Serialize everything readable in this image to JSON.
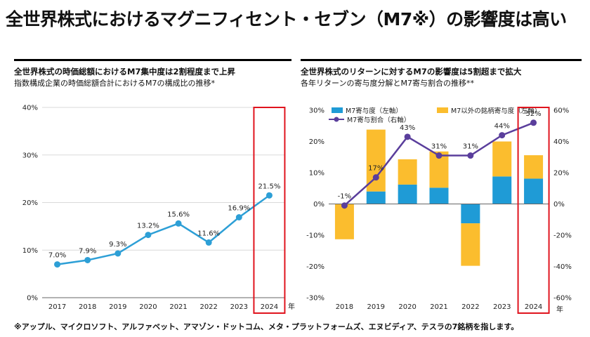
{
  "main_title": "全世界株式におけるマグニフィセント・セブン（M7※）の影響度は高い",
  "left_panel": {
    "title": "全世界株式の時価総額におけるM7集中度は2割程度まで上昇",
    "subtitle": "指数構成企業の時価総額合計におけるM7の構成比の推移*"
  },
  "right_panel": {
    "title": "全世界株式のリターンに対するM7の影響度は5割超まで拡大",
    "subtitle": "各年リターンの寄与度分解とM7寄与割合の推移**"
  },
  "footnote": "※アップル、マイクロソフト、アルファベット、アマゾン・ドットコム、メタ・プラットフォームズ、エヌビディア、テスラの7銘柄を指します。",
  "colors": {
    "line_left": "#2d9fd6",
    "m7_bar": "#1f9bd6",
    "other_bar": "#fbbd2e",
    "ratio_line": "#5a3e9c",
    "highlight": "#e0141e",
    "grid": "#d9d9d9"
  },
  "chart_data": [
    {
      "type": "line",
      "title": "全世界株式の時価総額におけるM7集中度は2割程度まで上昇",
      "categories": [
        "2017",
        "2018",
        "2019",
        "2020",
        "2021",
        "2022",
        "2023",
        "2024"
      ],
      "values": [
        7.0,
        7.9,
        9.3,
        13.2,
        15.6,
        11.6,
        16.9,
        21.5
      ],
      "data_labels": [
        "7.0%",
        "7.9%",
        "9.3%",
        "13.2%",
        "15.6%",
        "11.6%",
        "16.9%",
        "21.5%"
      ],
      "y_ticks": [
        "0%",
        "10%",
        "20%",
        "30%",
        "40%"
      ],
      "ylim": [
        0,
        40
      ],
      "x_unit": "年",
      "highlight_category": "2024"
    },
    {
      "type": "bar",
      "title": "全世界株式のリターンに対するM7の影響度は5割超まで拡大",
      "categories": [
        "2018",
        "2019",
        "2020",
        "2021",
        "2022",
        "2023",
        "2024"
      ],
      "series": [
        {
          "name": "M7寄与度（左軸）",
          "type": "bar",
          "values": [
            0.0,
            4.0,
            6.2,
            5.2,
            -6.2,
            8.8,
            8.1
          ]
        },
        {
          "name": "M7以外の銘柄寄与度（左軸）",
          "type": "bar",
          "values": [
            -11.3,
            19.8,
            8.1,
            11.6,
            -13.6,
            11.2,
            7.5
          ]
        },
        {
          "name": "M7寄与割合（右軸）",
          "type": "line",
          "values": [
            -1,
            17,
            43,
            31,
            31,
            44,
            52
          ]
        }
      ],
      "ratio_labels": [
        "-1%",
        "17%",
        "43%",
        "31%",
        "31%",
        "44%",
        "52%"
      ],
      "y_left_ticks": [
        "-30%",
        "-20%",
        "-10%",
        "0%",
        "10%",
        "20%",
        "30%"
      ],
      "y_right_ticks": [
        "-60%",
        "-40%",
        "-20%",
        "0%",
        "20%",
        "40%",
        "60%"
      ],
      "ylim_left": [
        -30,
        30
      ],
      "ylim_right": [
        -60,
        60
      ],
      "x_unit": "年",
      "highlight_category": "2024"
    }
  ]
}
